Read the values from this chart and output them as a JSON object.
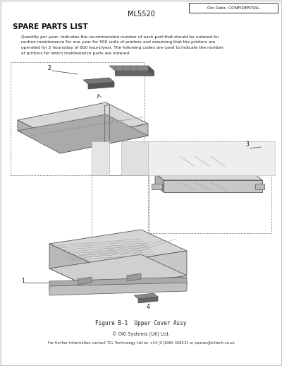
{
  "bg_color": "#e8e8e8",
  "page_bg": "#ffffff",
  "title_center": "ML5520",
  "confidential_text": "Oki Data  CONFIDENTIAL",
  "section_title": "SPARE PARTS LIST",
  "body_text_lines": [
    "Quantity per year: Indicates the recommended number of each part that should be ordered for",
    "routine maintenance for one year for 500 units of printers and assuming that the printers are",
    "operated for 2 hours/day of 600 hours/year. The following codes are used to indicate the number",
    "of printers for which maintenance parts are ordered."
  ],
  "figure_caption": "Figure B-1  Upper Cover Assy",
  "copyright_line1": "© OKI Systems (UK) Ltd.",
  "copyright_line2": "For further information contact TCL Technology Ltd on +44 (0)1865 368232 or spares@tcltech.co.uk",
  "label_1": "1",
  "label_2": "2",
  "label_3": "3",
  "label_4": "4",
  "line_color": "#555555",
  "part_light": "#e8e8e8",
  "part_mid": "#cccccc",
  "part_dark": "#aaaaaa",
  "part_darker": "#888888",
  "dashed_color": "#777777"
}
